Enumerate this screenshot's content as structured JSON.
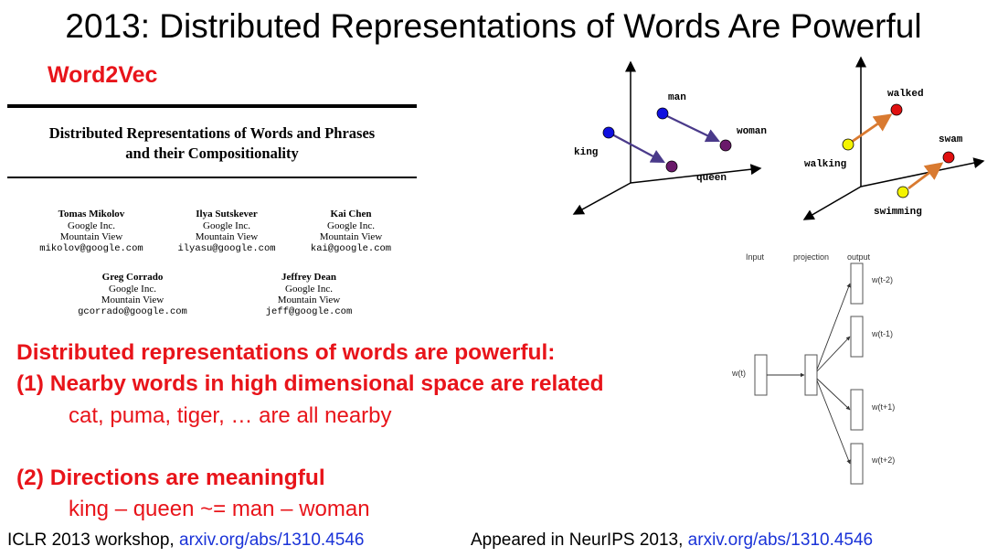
{
  "slide": {
    "title": "2013: Distributed Representations of Words Are Powerful",
    "subtitle": "Word2Vec"
  },
  "paper": {
    "title_line1": "Distributed Representations of Words and Phrases",
    "title_line2": "and their Compositionality",
    "authors": [
      {
        "name": "Tomas Mikolov",
        "org": "Google Inc.",
        "loc": "Mountain View",
        "email": "mikolov@google.com"
      },
      {
        "name": "Ilya Sutskever",
        "org": "Google Inc.",
        "loc": "Mountain View",
        "email": "ilyasu@google.com"
      },
      {
        "name": "Kai Chen",
        "org": "Google Inc.",
        "loc": "Mountain View",
        "email": "kai@google.com"
      },
      {
        "name": "Greg Corrado",
        "org": "Google Inc.",
        "loc": "Mountain View",
        "email": "gcorrado@google.com"
      },
      {
        "name": "Jeffrey Dean",
        "org": "Google Inc.",
        "loc": "Mountain View",
        "email": "jeff@google.com"
      }
    ]
  },
  "diagram_gender": {
    "points": {
      "king": "king",
      "queen": "queen",
      "man": "man",
      "woman": "woman"
    },
    "colors": {
      "blue": "#1010e0",
      "purple": "#6a1a6a",
      "arrow": "#4a3a8a"
    }
  },
  "diagram_tense": {
    "points": {
      "walking": "walking",
      "walked": "walked",
      "swimming": "swimming",
      "swam": "swam"
    },
    "colors": {
      "yellow": "#f4f400",
      "red": "#e01010",
      "arrow": "#d97a30"
    }
  },
  "skipgram": {
    "headers": {
      "input": "Input",
      "projection": "projection",
      "output": "output"
    },
    "input_word": "w(t)",
    "outputs": [
      "w(t-2)",
      "w(t-1)",
      "w(t+1)",
      "w(t+2)"
    ]
  },
  "points": {
    "heading": "Distributed representations of words are powerful:",
    "point1": "(1) Nearby words in high dimensional space are related",
    "point1_example": "cat, puma, tiger, … are all nearby",
    "point2": "(2) Directions are meaningful",
    "point2_example": "king – queen ~= man – woman"
  },
  "footer": {
    "left_text": "ICLR 2013 workshop, ",
    "left_link": "arxiv.org/abs/1310.4546",
    "right_text": "Appeared in NeurIPS 2013, ",
    "right_link": "arxiv.org/abs/1310.4546"
  },
  "colors": {
    "accent_red": "#e8141a",
    "link_blue": "#1a33d8"
  }
}
